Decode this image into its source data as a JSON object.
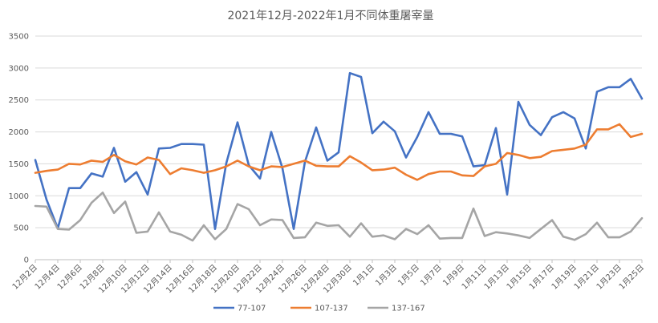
{
  "chart_data": {
    "type": "line",
    "title": "2021年12月-2022年1月不同体重屠宰量",
    "ylim": [
      0,
      3500
    ],
    "yticks": [
      0,
      500,
      1000,
      1500,
      2000,
      2500,
      3000,
      3500
    ],
    "grid": true,
    "legend_position": "bottom",
    "x": [
      "12月2日",
      "12月3日",
      "12月4日",
      "12月5日",
      "12月6日",
      "12月7日",
      "12月8日",
      "12月9日",
      "12月10日",
      "12月11日",
      "12月12日",
      "12月13日",
      "12月14日",
      "12月15日",
      "12月16日",
      "12月17日",
      "12月18日",
      "12月19日",
      "12月20日",
      "12月21日",
      "12月22日",
      "12月23日",
      "12月24日",
      "12月25日",
      "12月26日",
      "12月27日",
      "12月28日",
      "12月29日",
      "12月30日",
      "12月31日",
      "1月1日",
      "1月2日",
      "1月3日",
      "1月4日",
      "1月5日",
      "1月6日",
      "1月7日",
      "1月8日",
      "1月9日",
      "1月10日",
      "1月11日",
      "1月12日",
      "1月13日",
      "1月14日",
      "1月15日",
      "1月16日",
      "1月17日",
      "1月18日",
      "1月19日",
      "1月20日",
      "1月21日",
      "1月22日",
      "1月23日",
      "1月24日",
      "1月25日",
      "1月26日"
    ],
    "tick_labels": [
      "12月2日",
      "12月4日",
      "12月6日",
      "12月8日",
      "12月10日",
      "12月12日",
      "12月14日",
      "12月16日",
      "12月18日",
      "12月20日",
      "12月22日",
      "12月24日",
      "12月26日",
      "12月28日",
      "12月30日",
      "1月1日",
      "1月3日",
      "1月5日",
      "1月7日",
      "1月9日",
      "1月11日",
      "1月13日",
      "1月15日",
      "1月17日",
      "1月19日",
      "1月21日",
      "1月23日",
      "1月25日"
    ],
    "series": [
      {
        "name": "77-107",
        "color": "#4472C4",
        "values": [
          1560,
          940,
          490,
          1120,
          1120,
          1350,
          1300,
          1750,
          1220,
          1370,
          1020,
          1740,
          1750,
          1810,
          1810,
          1800,
          480,
          1510,
          2150,
          1480,
          1270,
          2000,
          1430,
          480,
          1530,
          2070,
          1550,
          1680,
          2920,
          2860,
          1980,
          2160,
          2010,
          1600,
          1920,
          2310,
          1970,
          1970,
          1930,
          1460,
          1480,
          2060,
          1020,
          2470,
          2110,
          1950,
          2230,
          2310,
          2210,
          1740,
          2630,
          2700,
          2700,
          2830,
          2520,
          2520
        ],
        "values_plotted_count": 55
      },
      {
        "name": "107-137",
        "color": "#ED7D31",
        "values": [
          1360,
          1390,
          1410,
          1500,
          1490,
          1550,
          1530,
          1640,
          1540,
          1490,
          1600,
          1560,
          1340,
          1430,
          1400,
          1360,
          1400,
          1460,
          1550,
          1460,
          1400,
          1460,
          1450,
          1500,
          1550,
          1470,
          1460,
          1460,
          1620,
          1520,
          1400,
          1410,
          1440,
          1330,
          1250,
          1340,
          1380,
          1380,
          1320,
          1310,
          1460,
          1500,
          1670,
          1640,
          1590,
          1610,
          1700,
          1720,
          1740,
          1800,
          2040,
          2040,
          2120,
          1920,
          1970,
          1970
        ],
        "values_plotted_count": 55
      },
      {
        "name": "137-167",
        "color": "#A5A5A5",
        "values": [
          840,
          830,
          480,
          470,
          620,
          890,
          1050,
          730,
          910,
          420,
          440,
          740,
          440,
          390,
          300,
          540,
          320,
          480,
          870,
          790,
          540,
          630,
          620,
          340,
          350,
          580,
          530,
          540,
          360,
          570,
          360,
          380,
          320,
          480,
          400,
          540,
          330,
          340,
          340,
          800,
          370,
          430,
          410,
          380,
          340,
          480,
          620,
          360,
          310,
          400,
          580,
          350,
          350,
          440,
          650,
          650
        ],
        "values_plotted_count": 55
      }
    ]
  }
}
